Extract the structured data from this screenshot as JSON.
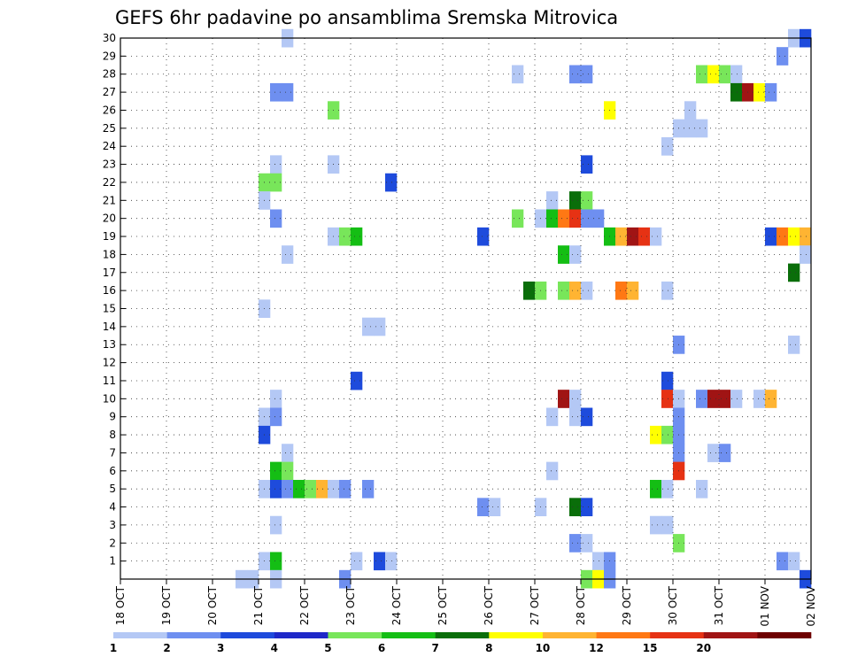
{
  "chart_data": {
    "type": "heatmap",
    "title": "GEFS 6hr padavine po ansamblima Sremska Mitrovica",
    "xlabel": "",
    "ylabel": "",
    "x_tick_labels": [
      "18 OCT",
      "19 OCT",
      "20 OCT",
      "21 OCT",
      "22 OCT",
      "23 OCT",
      "24 OCT",
      "25 OCT",
      "26 OCT",
      "27 OCT",
      "28 OCT",
      "29 OCT",
      "30 OCT",
      "31 OCT",
      "01 NOV",
      "02 NOV"
    ],
    "x_unit": "6-hour step from 18 OCT 00Z",
    "x_range": [
      0,
      60
    ],
    "y_tick_labels": [
      "1",
      "2",
      "3",
      "4",
      "5",
      "6",
      "7",
      "8",
      "9",
      "10",
      "11",
      "12",
      "13",
      "14",
      "15",
      "16",
      "17",
      "18",
      "19",
      "20",
      "21",
      "22",
      "23",
      "24",
      "25",
      "26",
      "27",
      "28",
      "29",
      "30"
    ],
    "y_range": [
      0,
      30
    ],
    "grid": true,
    "colorbar": {
      "labels": [
        "1",
        "2",
        "3",
        "4",
        "5",
        "6",
        "7",
        "8",
        "10",
        "12",
        "15",
        "20"
      ],
      "colors": [
        "#b4c8f5",
        "#6e8ff0",
        "#1e4bdc",
        "#1e28c8",
        "#78e65a",
        "#14be14",
        "#0a6e0a",
        "#ffff00",
        "#ffb432",
        "#ff7814",
        "#e63214",
        "#a01414",
        "#6e0000"
      ]
    },
    "cells": [
      {
        "x": 14,
        "y": 30,
        "c": 1
      },
      {
        "x": 58,
        "y": 30,
        "c": 1
      },
      {
        "x": 59,
        "y": 30,
        "c": 3
      },
      {
        "x": 57,
        "y": 29,
        "c": 2
      },
      {
        "x": 34,
        "y": 28,
        "c": 1
      },
      {
        "x": 39,
        "y": 28,
        "c": 2
      },
      {
        "x": 40,
        "y": 28,
        "c": 2
      },
      {
        "x": 50,
        "y": 28,
        "c": 5
      },
      {
        "x": 51,
        "y": 28,
        "c": 8
      },
      {
        "x": 52,
        "y": 28,
        "c": 5
      },
      {
        "x": 53,
        "y": 28,
        "c": 1
      },
      {
        "x": 13,
        "y": 27,
        "c": 2
      },
      {
        "x": 14,
        "y": 27,
        "c": 2
      },
      {
        "x": 53,
        "y": 27,
        "c": 7
      },
      {
        "x": 54,
        "y": 27,
        "c": 12
      },
      {
        "x": 55,
        "y": 27,
        "c": 8
      },
      {
        "x": 56,
        "y": 27,
        "c": 2
      },
      {
        "x": 18,
        "y": 26,
        "c": 5
      },
      {
        "x": 42,
        "y": 26,
        "c": 8
      },
      {
        "x": 49,
        "y": 26,
        "c": 1
      },
      {
        "x": 48,
        "y": 25,
        "c": 1
      },
      {
        "x": 49,
        "y": 25,
        "c": 1
      },
      {
        "x": 50,
        "y": 25,
        "c": 1
      },
      {
        "x": 47,
        "y": 24,
        "c": 1
      },
      {
        "x": 13,
        "y": 23,
        "c": 1
      },
      {
        "x": 18,
        "y": 23,
        "c": 1
      },
      {
        "x": 40,
        "y": 23,
        "c": 3
      },
      {
        "x": 12,
        "y": 22,
        "c": 5
      },
      {
        "x": 13,
        "y": 22,
        "c": 5
      },
      {
        "x": 23,
        "y": 22,
        "c": 3
      },
      {
        "x": 12,
        "y": 21,
        "c": 1
      },
      {
        "x": 37,
        "y": 21,
        "c": 1
      },
      {
        "x": 39,
        "y": 21,
        "c": 7
      },
      {
        "x": 40,
        "y": 21,
        "c": 5
      },
      {
        "x": 13,
        "y": 20,
        "c": 2
      },
      {
        "x": 34,
        "y": 20,
        "c": 5
      },
      {
        "x": 36,
        "y": 20,
        "c": 1
      },
      {
        "x": 37,
        "y": 20,
        "c": 6
      },
      {
        "x": 38,
        "y": 20,
        "c": 10
      },
      {
        "x": 39,
        "y": 20,
        "c": 11
      },
      {
        "x": 40,
        "y": 20,
        "c": 2
      },
      {
        "x": 41,
        "y": 20,
        "c": 2
      },
      {
        "x": 18,
        "y": 19,
        "c": 1
      },
      {
        "x": 19,
        "y": 19,
        "c": 5
      },
      {
        "x": 20,
        "y": 19,
        "c": 6
      },
      {
        "x": 31,
        "y": 19,
        "c": 3
      },
      {
        "x": 42,
        "y": 19,
        "c": 6
      },
      {
        "x": 43,
        "y": 19,
        "c": 9
      },
      {
        "x": 44,
        "y": 19,
        "c": 12
      },
      {
        "x": 45,
        "y": 19,
        "c": 11
      },
      {
        "x": 46,
        "y": 19,
        "c": 1
      },
      {
        "x": 56,
        "y": 19,
        "c": 3
      },
      {
        "x": 57,
        "y": 19,
        "c": 10
      },
      {
        "x": 58,
        "y": 19,
        "c": 8
      },
      {
        "x": 59,
        "y": 19,
        "c": 9
      },
      {
        "x": 14,
        "y": 18,
        "c": 1
      },
      {
        "x": 38,
        "y": 18,
        "c": 6
      },
      {
        "x": 39,
        "y": 18,
        "c": 1
      },
      {
        "x": 59,
        "y": 18,
        "c": 1
      },
      {
        "x": 58,
        "y": 17,
        "c": 7
      },
      {
        "x": 35,
        "y": 16,
        "c": 7
      },
      {
        "x": 36,
        "y": 16,
        "c": 5
      },
      {
        "x": 38,
        "y": 16,
        "c": 5
      },
      {
        "x": 39,
        "y": 16,
        "c": 9
      },
      {
        "x": 40,
        "y": 16,
        "c": 1
      },
      {
        "x": 43,
        "y": 16,
        "c": 10
      },
      {
        "x": 44,
        "y": 16,
        "c": 9
      },
      {
        "x": 47,
        "y": 16,
        "c": 1
      },
      {
        "x": 12,
        "y": 15,
        "c": 1
      },
      {
        "x": 21,
        "y": 14,
        "c": 1
      },
      {
        "x": 22,
        "y": 14,
        "c": 1
      },
      {
        "x": 48,
        "y": 13,
        "c": 2
      },
      {
        "x": 58,
        "y": 13,
        "c": 1
      },
      {
        "x": 20,
        "y": 11,
        "c": 3
      },
      {
        "x": 47,
        "y": 11,
        "c": 3
      },
      {
        "x": 13,
        "y": 10,
        "c": 1
      },
      {
        "x": 38,
        "y": 10,
        "c": 12
      },
      {
        "x": 39,
        "y": 10,
        "c": 1
      },
      {
        "x": 47,
        "y": 10,
        "c": 11
      },
      {
        "x": 48,
        "y": 10,
        "c": 1
      },
      {
        "x": 50,
        "y": 10,
        "c": 2
      },
      {
        "x": 51,
        "y": 10,
        "c": 12
      },
      {
        "x": 52,
        "y": 10,
        "c": 12
      },
      {
        "x": 53,
        "y": 10,
        "c": 1
      },
      {
        "x": 55,
        "y": 10,
        "c": 1
      },
      {
        "x": 56,
        "y": 10,
        "c": 9
      },
      {
        "x": 12,
        "y": 9,
        "c": 1
      },
      {
        "x": 13,
        "y": 9,
        "c": 2
      },
      {
        "x": 37,
        "y": 9,
        "c": 1
      },
      {
        "x": 39,
        "y": 9,
        "c": 1
      },
      {
        "x": 40,
        "y": 9,
        "c": 3
      },
      {
        "x": 48,
        "y": 9,
        "c": 2
      },
      {
        "x": 12,
        "y": 8,
        "c": 3
      },
      {
        "x": 46,
        "y": 8,
        "c": 8
      },
      {
        "x": 47,
        "y": 8,
        "c": 5
      },
      {
        "x": 48,
        "y": 8,
        "c": 2
      },
      {
        "x": 14,
        "y": 7,
        "c": 1
      },
      {
        "x": 48,
        "y": 7,
        "c": 2
      },
      {
        "x": 51,
        "y": 7,
        "c": 1
      },
      {
        "x": 52,
        "y": 7,
        "c": 2
      },
      {
        "x": 13,
        "y": 6,
        "c": 6
      },
      {
        "x": 14,
        "y": 6,
        "c": 5
      },
      {
        "x": 37,
        "y": 6,
        "c": 1
      },
      {
        "x": 48,
        "y": 6,
        "c": 11
      },
      {
        "x": 12,
        "y": 5,
        "c": 1
      },
      {
        "x": 13,
        "y": 5,
        "c": 3
      },
      {
        "x": 14,
        "y": 5,
        "c": 2
      },
      {
        "x": 15,
        "y": 5,
        "c": 6
      },
      {
        "x": 16,
        "y": 5,
        "c": 5
      },
      {
        "x": 17,
        "y": 5,
        "c": 9
      },
      {
        "x": 18,
        "y": 5,
        "c": 1
      },
      {
        "x": 19,
        "y": 5,
        "c": 2
      },
      {
        "x": 21,
        "y": 5,
        "c": 2
      },
      {
        "x": 46,
        "y": 5,
        "c": 6
      },
      {
        "x": 47,
        "y": 5,
        "c": 1
      },
      {
        "x": 50,
        "y": 5,
        "c": 1
      },
      {
        "x": 31,
        "y": 4,
        "c": 2
      },
      {
        "x": 32,
        "y": 4,
        "c": 1
      },
      {
        "x": 36,
        "y": 4,
        "c": 1
      },
      {
        "x": 39,
        "y": 4,
        "c": 7
      },
      {
        "x": 40,
        "y": 4,
        "c": 3
      },
      {
        "x": 13,
        "y": 3,
        "c": 1
      },
      {
        "x": 46,
        "y": 3,
        "c": 1
      },
      {
        "x": 47,
        "y": 3,
        "c": 1
      },
      {
        "x": 39,
        "y": 2,
        "c": 2
      },
      {
        "x": 40,
        "y": 2,
        "c": 1
      },
      {
        "x": 48,
        "y": 2,
        "c": 5
      },
      {
        "x": 12,
        "y": 1,
        "c": 1
      },
      {
        "x": 13,
        "y": 1,
        "c": 6
      },
      {
        "x": 20,
        "y": 1,
        "c": 1
      },
      {
        "x": 22,
        "y": 1,
        "c": 3
      },
      {
        "x": 23,
        "y": 1,
        "c": 1
      },
      {
        "x": 41,
        "y": 1,
        "c": 1
      },
      {
        "x": 42,
        "y": 1,
        "c": 2
      },
      {
        "x": 57,
        "y": 1,
        "c": 2
      },
      {
        "x": 58,
        "y": 1,
        "c": 1
      },
      {
        "x": 10,
        "y": 0,
        "c": 1
      },
      {
        "x": 11,
        "y": 0,
        "c": 1
      },
      {
        "x": 13,
        "y": 0,
        "c": 1
      },
      {
        "x": 19,
        "y": 0,
        "c": 2
      },
      {
        "x": 40,
        "y": 0,
        "c": 5
      },
      {
        "x": 41,
        "y": 0,
        "c": 8
      },
      {
        "x": 42,
        "y": 0,
        "c": 2
      },
      {
        "x": 59,
        "y": 0,
        "c": 3
      }
    ]
  }
}
